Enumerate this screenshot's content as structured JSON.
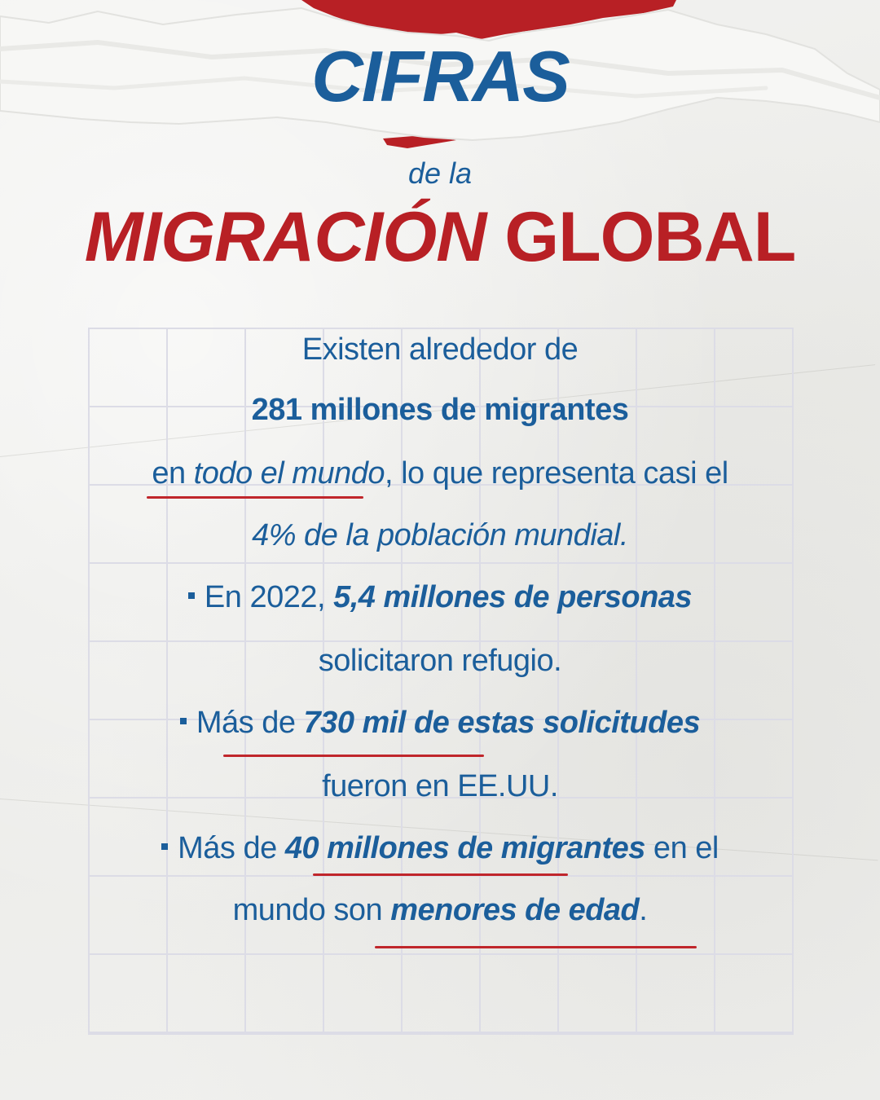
{
  "title": {
    "cifras": "CIFRAS",
    "de_la": "de la",
    "migracion": "MIGRACIÓN",
    "global": "GLOBAL"
  },
  "body": {
    "l1": "Existen alrededor de",
    "l2": "281 millones de migrantes",
    "l3_a": "en ",
    "l3_b": "todo el mundo",
    "l3_c": ", lo que representa casi el",
    "l4": "4% de la población mundial.",
    "l5_a": "En 2022, ",
    "l5_b": "5,4 millones de personas",
    "l6": "solicitaron refugio.",
    "l7_a": "Más de ",
    "l7_b": "730 mil de estas solicitudes",
    "l8": "fueron en EE.UU.",
    "l9_a": "Más de ",
    "l9_b": "40 millones de migrantes",
    "l9_c": " en el",
    "l10_a": "mundo son ",
    "l10_b": "menores de edad",
    "l10_c": "."
  },
  "colors": {
    "blue": "#1b5e9b",
    "red": "#b82025",
    "grid": "#dcdce6",
    "paper": "#f0f0ee"
  }
}
